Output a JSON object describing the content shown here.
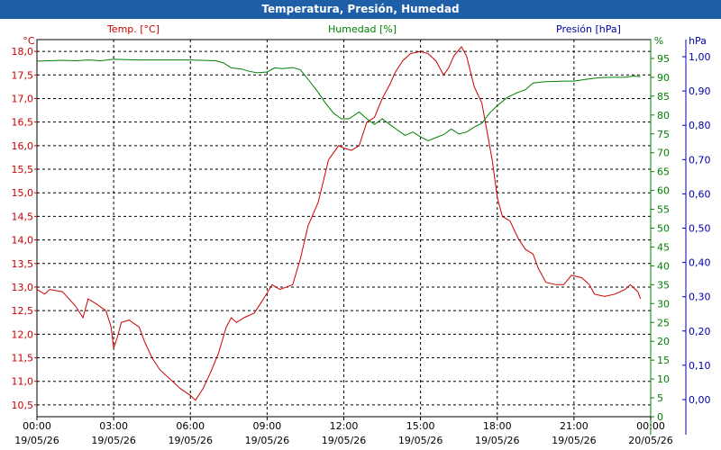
{
  "window": {
    "title": "Temperatura, Presión, Humedad"
  },
  "colors": {
    "temp": "#cc0000",
    "hum": "#008000",
    "pres": "#0000aa",
    "grid": "#000000",
    "titlebar": "#1f5fa8"
  },
  "chart_data": {
    "type": "line",
    "title": "Temperatura, Presión, Humedad",
    "grid": true,
    "legend": "top",
    "x": {
      "ticks": [
        {
          "time": "00:00",
          "date": "19/05/26"
        },
        {
          "time": "03:00",
          "date": "19/05/26"
        },
        {
          "time": "06:00",
          "date": "19/05/26"
        },
        {
          "time": "09:00",
          "date": "19/05/26"
        },
        {
          "time": "12:00",
          "date": "19/05/26"
        },
        {
          "time": "15:00",
          "date": "19/05/26"
        },
        {
          "time": "18:00",
          "date": "19/05/26"
        },
        {
          "time": "21:00",
          "date": "19/05/26"
        },
        {
          "time": "00:00",
          "date": "20/05/26"
        }
      ],
      "range_hours": [
        0,
        24
      ]
    },
    "axes": {
      "temp": {
        "label": "Temp. [°C]",
        "unit": "°C",
        "range": [
          10.25,
          18.25
        ],
        "ticks": [
          "10,5",
          "11,0",
          "11,5",
          "12,0",
          "12,5",
          "13,0",
          "13,5",
          "14,0",
          "14,5",
          "15,0",
          "15,5",
          "16,0",
          "16,5",
          "17,0",
          "17,5",
          "18,0"
        ]
      },
      "hum": {
        "label": "Humedad [%]",
        "unit": "%",
        "range": [
          0,
          100
        ],
        "ticks": [
          "0",
          "5",
          "10",
          "15",
          "20",
          "25",
          "30",
          "35",
          "40",
          "45",
          "50",
          "55",
          "60",
          "65",
          "70",
          "75",
          "80",
          "85",
          "90",
          "95"
        ]
      },
      "pres": {
        "label": "Presión [hPa]",
        "unit": "hPa",
        "range": [
          -0.05,
          1.05
        ],
        "ticks": [
          "0,00",
          "0,10",
          "0,20",
          "0,30",
          "0,40",
          "0,50",
          "0,60",
          "0,70",
          "0,80",
          "0,90",
          "1,00"
        ]
      }
    },
    "series": [
      {
        "name": "Temp. [°C]",
        "axis": "temp",
        "points": [
          [
            0,
            12.95
          ],
          [
            0.3,
            12.85
          ],
          [
            0.5,
            12.95
          ],
          [
            1.0,
            12.9
          ],
          [
            1.5,
            12.6
          ],
          [
            1.8,
            12.35
          ],
          [
            2.0,
            12.75
          ],
          [
            2.3,
            12.65
          ],
          [
            2.7,
            12.5
          ],
          [
            2.9,
            12.15
          ],
          [
            3.0,
            11.7
          ],
          [
            3.15,
            11.95
          ],
          [
            3.3,
            12.25
          ],
          [
            3.6,
            12.3
          ],
          [
            4.0,
            12.15
          ],
          [
            4.2,
            11.85
          ],
          [
            4.5,
            11.5
          ],
          [
            4.8,
            11.25
          ],
          [
            5.2,
            11.05
          ],
          [
            5.6,
            10.85
          ],
          [
            6.0,
            10.7
          ],
          [
            6.2,
            10.6
          ],
          [
            6.5,
            10.85
          ],
          [
            6.8,
            11.2
          ],
          [
            7.1,
            11.6
          ],
          [
            7.4,
            12.15
          ],
          [
            7.6,
            12.35
          ],
          [
            7.8,
            12.25
          ],
          [
            8.1,
            12.35
          ],
          [
            8.5,
            12.45
          ],
          [
            8.8,
            12.7
          ],
          [
            9.2,
            13.05
          ],
          [
            9.5,
            12.95
          ],
          [
            10.0,
            13.05
          ],
          [
            10.3,
            13.6
          ],
          [
            10.6,
            14.3
          ],
          [
            11.0,
            14.8
          ],
          [
            11.4,
            15.7
          ],
          [
            11.8,
            16.0
          ],
          [
            12.0,
            15.95
          ],
          [
            12.3,
            15.9
          ],
          [
            12.6,
            16.0
          ],
          [
            12.9,
            16.5
          ],
          [
            13.2,
            16.6
          ],
          [
            13.5,
            17.0
          ],
          [
            13.8,
            17.3
          ],
          [
            14.0,
            17.55
          ],
          [
            14.3,
            17.8
          ],
          [
            14.6,
            17.95
          ],
          [
            15.0,
            18.0
          ],
          [
            15.3,
            17.95
          ],
          [
            15.6,
            17.8
          ],
          [
            15.9,
            17.5
          ],
          [
            16.1,
            17.65
          ],
          [
            16.3,
            17.9
          ],
          [
            16.6,
            18.1
          ],
          [
            16.8,
            17.9
          ],
          [
            17.1,
            17.25
          ],
          [
            17.4,
            16.9
          ],
          [
            17.8,
            15.7
          ],
          [
            18.0,
            14.9
          ],
          [
            18.2,
            14.5
          ],
          [
            18.5,
            14.4
          ],
          [
            18.8,
            14.05
          ],
          [
            19.1,
            13.8
          ],
          [
            19.4,
            13.7
          ],
          [
            19.6,
            13.4
          ],
          [
            19.9,
            13.1
          ],
          [
            20.3,
            13.05
          ],
          [
            20.6,
            13.05
          ],
          [
            20.9,
            13.25
          ],
          [
            21.3,
            13.2
          ],
          [
            21.6,
            13.05
          ],
          [
            21.8,
            12.85
          ],
          [
            22.2,
            12.8
          ],
          [
            22.6,
            12.85
          ],
          [
            23.0,
            12.95
          ],
          [
            23.2,
            13.05
          ],
          [
            23.5,
            12.9
          ],
          [
            23.6,
            12.75
          ]
        ]
      },
      {
        "name": "Humedad [%]",
        "axis": "hum",
        "points": [
          [
            0,
            94.3
          ],
          [
            0.5,
            94.4
          ],
          [
            1.0,
            94.5
          ],
          [
            1.5,
            94.4
          ],
          [
            2.0,
            94.6
          ],
          [
            2.5,
            94.4
          ],
          [
            3.0,
            94.8
          ],
          [
            3.5,
            94.7
          ],
          [
            4.0,
            94.6
          ],
          [
            5.0,
            94.6
          ],
          [
            6.0,
            94.6
          ],
          [
            7.0,
            94.4
          ],
          [
            7.3,
            93.8
          ],
          [
            7.6,
            92.5
          ],
          [
            8.0,
            92.2
          ],
          [
            8.3,
            91.6
          ],
          [
            8.6,
            91.2
          ],
          [
            9.0,
            91.4
          ],
          [
            9.3,
            92.5
          ],
          [
            9.6,
            92.3
          ],
          [
            10.0,
            92.6
          ],
          [
            10.3,
            92.0
          ],
          [
            10.6,
            89.5
          ],
          [
            11.0,
            86.0
          ],
          [
            11.3,
            83.0
          ],
          [
            11.6,
            80.5
          ],
          [
            11.9,
            79.0
          ],
          [
            12.2,
            79.0
          ],
          [
            12.6,
            80.8
          ],
          [
            12.9,
            79.0
          ],
          [
            13.2,
            77.5
          ],
          [
            13.5,
            79.0
          ],
          [
            13.8,
            77.5
          ],
          [
            14.1,
            76.0
          ],
          [
            14.4,
            74.6
          ],
          [
            14.7,
            75.5
          ],
          [
            15.0,
            74.2
          ],
          [
            15.3,
            73.2
          ],
          [
            15.6,
            74.0
          ],
          [
            15.9,
            74.8
          ],
          [
            16.2,
            76.3
          ],
          [
            16.5,
            75.0
          ],
          [
            16.8,
            75.5
          ],
          [
            17.1,
            76.8
          ],
          [
            17.4,
            77.8
          ],
          [
            17.7,
            80.5
          ],
          [
            18.0,
            82.5
          ],
          [
            18.4,
            84.7
          ],
          [
            18.8,
            86.0
          ],
          [
            19.1,
            86.7
          ],
          [
            19.4,
            88.5
          ],
          [
            19.8,
            88.8
          ],
          [
            20.2,
            88.9
          ],
          [
            20.6,
            89.0
          ],
          [
            21.0,
            89.0
          ],
          [
            21.5,
            89.5
          ],
          [
            22.0,
            89.9
          ],
          [
            22.5,
            90.0
          ],
          [
            23.0,
            90.0
          ],
          [
            23.3,
            90.3
          ],
          [
            23.6,
            90.2
          ]
        ]
      },
      {
        "name": "Presión [hPa]",
        "axis": "pres",
        "points": []
      }
    ]
  }
}
